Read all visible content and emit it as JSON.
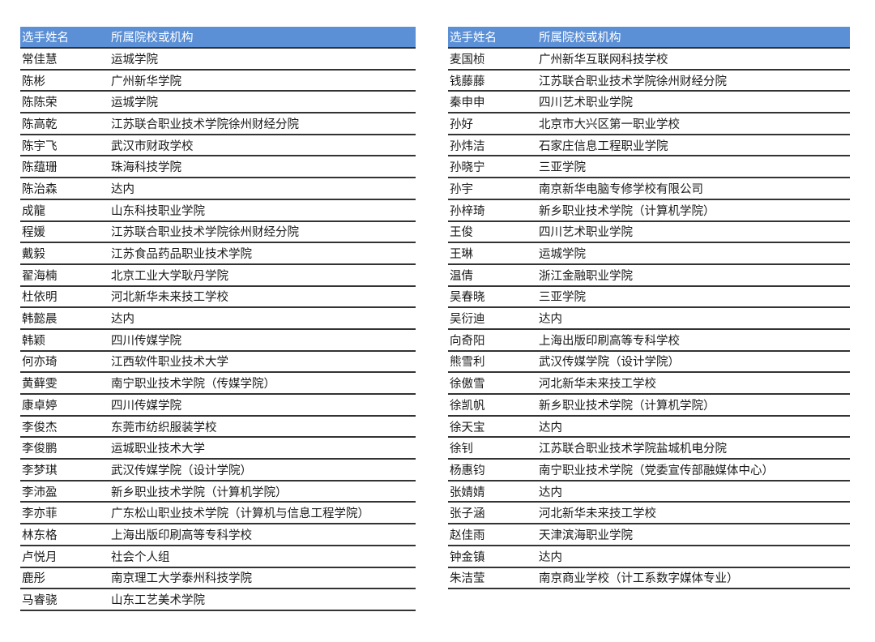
{
  "header": {
    "name": "选手姓名",
    "org": "所属院校或机构"
  },
  "colors": {
    "header_bg": "#5b8fd6",
    "header_text": "#ffffff",
    "rule": "#333333"
  },
  "left_table": [
    {
      "name": "常佳慧",
      "org": "运城学院"
    },
    {
      "name": "陈彬",
      "org": "广州新华学院"
    },
    {
      "name": "陈陈荣",
      "org": "运城学院"
    },
    {
      "name": "陈高乾",
      "org": "江苏联合职业技术学院徐州财经分院"
    },
    {
      "name": "陈宇飞",
      "org": "武汉市财政学校"
    },
    {
      "name": "陈蕴珊",
      "org": "珠海科技学院"
    },
    {
      "name": "陈治森",
      "org": "达内"
    },
    {
      "name": "成龍",
      "org": "山东科技职业学院"
    },
    {
      "name": "程媛",
      "org": "江苏联合职业技术学院徐州财经分院"
    },
    {
      "name": "戴毅",
      "org": "江苏食品药品职业技术学院"
    },
    {
      "name": "翟海楠",
      "org": "北京工业大学耿丹学院"
    },
    {
      "name": "杜依明",
      "org": "河北新华未来技工学校"
    },
    {
      "name": "韩懿晨",
      "org": "达内"
    },
    {
      "name": "韩颖",
      "org": "四川传媒学院"
    },
    {
      "name": "何亦琦",
      "org": "江西软件职业技术大学"
    },
    {
      "name": "黄藓雯",
      "org": "南宁职业技术学院（传媒学院）"
    },
    {
      "name": "康卓婷",
      "org": "四川传媒学院"
    },
    {
      "name": "李俊杰",
      "org": "东莞市纺织服装学校"
    },
    {
      "name": "李俊鹏",
      "org": "运城职业技术大学"
    },
    {
      "name": "李梦琪",
      "org": "武汉传媒学院（设计学院）"
    },
    {
      "name": "李沛盈",
      "org": "新乡职业技术学院（计算机学院）"
    },
    {
      "name": "李亦菲",
      "org": "广东松山职业技术学院（计算机与信息工程学院）"
    },
    {
      "name": "林东格",
      "org": "上海出版印刷高等专科学校"
    },
    {
      "name": "卢悦月",
      "org": "社会个人组"
    },
    {
      "name": "鹿彤",
      "org": "南京理工大学泰州科技学院"
    },
    {
      "name": "马睿骁",
      "org": "山东工艺美术学院"
    }
  ],
  "right_table": [
    {
      "name": "麦国桢",
      "org": "广州新华互联网科技学校"
    },
    {
      "name": "钱藤藤",
      "org": "江苏联合职业技术学院徐州财经分院"
    },
    {
      "name": "秦申申",
      "org": "四川艺术职业学院"
    },
    {
      "name": "孙好",
      "org": "北京市大兴区第一职业学校"
    },
    {
      "name": "孙炜洁",
      "org": "石家庄信息工程职业学院"
    },
    {
      "name": "孙晓宁",
      "org": "三亚学院"
    },
    {
      "name": "孙宇",
      "org": "南京新华电脑专修学校有限公司"
    },
    {
      "name": "孙梓琦",
      "org": "新乡职业技术学院（计算机学院）"
    },
    {
      "name": "王俊",
      "org": "四川艺术职业学院"
    },
    {
      "name": "王琳",
      "org": "运城学院"
    },
    {
      "name": "温倩",
      "org": "浙江金融职业学院"
    },
    {
      "name": "吴春晓",
      "org": "三亚学院"
    },
    {
      "name": "吴衍迪",
      "org": "达内"
    },
    {
      "name": "向奇阳",
      "org": "上海出版印刷高等专科学校"
    },
    {
      "name": "熊雪利",
      "org": "武汉传媒学院（设计学院）"
    },
    {
      "name": "徐傲雪",
      "org": "河北新华未来技工学校"
    },
    {
      "name": "徐凯帆",
      "org": "新乡职业技术学院（计算机学院）"
    },
    {
      "name": "徐天宝",
      "org": "达内"
    },
    {
      "name": "徐钊",
      "org": "江苏联合职业技术学院盐城机电分院"
    },
    {
      "name": "杨惠钧",
      "org": "南宁职业技术学院（党委宣传部融媒体中心）"
    },
    {
      "name": "张婧婧",
      "org": "达内"
    },
    {
      "name": "张子涵",
      "org": "河北新华未来技工学校"
    },
    {
      "name": "赵佳雨",
      "org": "天津滨海职业学院"
    },
    {
      "name": "钟金镇",
      "org": "达内"
    },
    {
      "name": "朱洁莹",
      "org": "南京商业学校（计工系数字媒体专业）"
    }
  ]
}
